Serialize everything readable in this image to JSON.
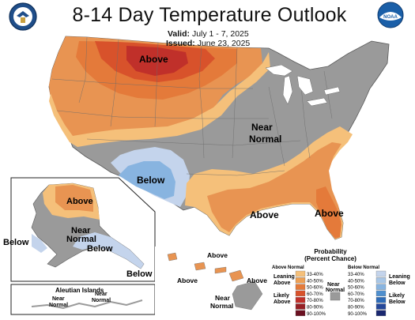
{
  "title": "8-14 Day Temperature Outlook",
  "valid_label": "Valid:",
  "valid_value": "July 1 - 7, 2025",
  "issued_label": "Issued:",
  "issued_value": "June 23, 2025",
  "logos": {
    "left": "Department of Commerce seal",
    "right_text": "NOAA"
  },
  "conus_labels": {
    "above_north": "Above",
    "near_normal_1": "Near",
    "near_normal_2": "Normal",
    "below_sw": "Below",
    "above_texas": "Above",
    "above_florida": "Above"
  },
  "alaska_labels": {
    "above": "Above",
    "near_1": "Near",
    "near_2": "Normal",
    "below_west": "Below",
    "below_se": "Below",
    "below_panhandle": "Below",
    "aleutian_title": "Aleutian Islands",
    "aleutian_near_1a": "Near",
    "aleutian_near_1b": "Normal",
    "aleutian_near_2a": "Near",
    "aleutian_near_2b": "Normal"
  },
  "hawaii_labels": {
    "above_1": "Above",
    "above_2": "Above",
    "above_3": "Above",
    "near_1": "Near",
    "near_2": "Normal"
  },
  "legend": {
    "title_1": "Probability",
    "title_2": "(Percent Chance)",
    "above_header": "Above Normal",
    "below_header": "Below Normal",
    "leaning_above_1": "Leaning",
    "leaning_above_2": "Above",
    "likely_above_1": "Likely",
    "likely_above_2": "Above",
    "near_1": "Near",
    "near_2": "Normal",
    "leaning_below_1": "Leaning",
    "leaning_below_2": "Below",
    "likely_below_1": "Likely",
    "likely_below_2": "Below",
    "above_bins": [
      "33-40%",
      "40-50%",
      "50-60%",
      "60-70%",
      "70-80%",
      "80-90%",
      "90-100%"
    ],
    "below_bins": [
      "33-40%",
      "40-50%",
      "50-60%",
      "60-70%",
      "70-80%",
      "80-90%",
      "90-100%"
    ],
    "above_colors": [
      "#f5c07a",
      "#eda055",
      "#e47a3a",
      "#d8522b",
      "#c0302a",
      "#962025",
      "#6a1020"
    ],
    "below_colors": [
      "#c4d4ec",
      "#a8c6e6",
      "#88b4e0",
      "#4f8fce",
      "#2e6cb8",
      "#24489a",
      "#1a2870"
    ],
    "near_color": "#9a9a9a"
  }
}
